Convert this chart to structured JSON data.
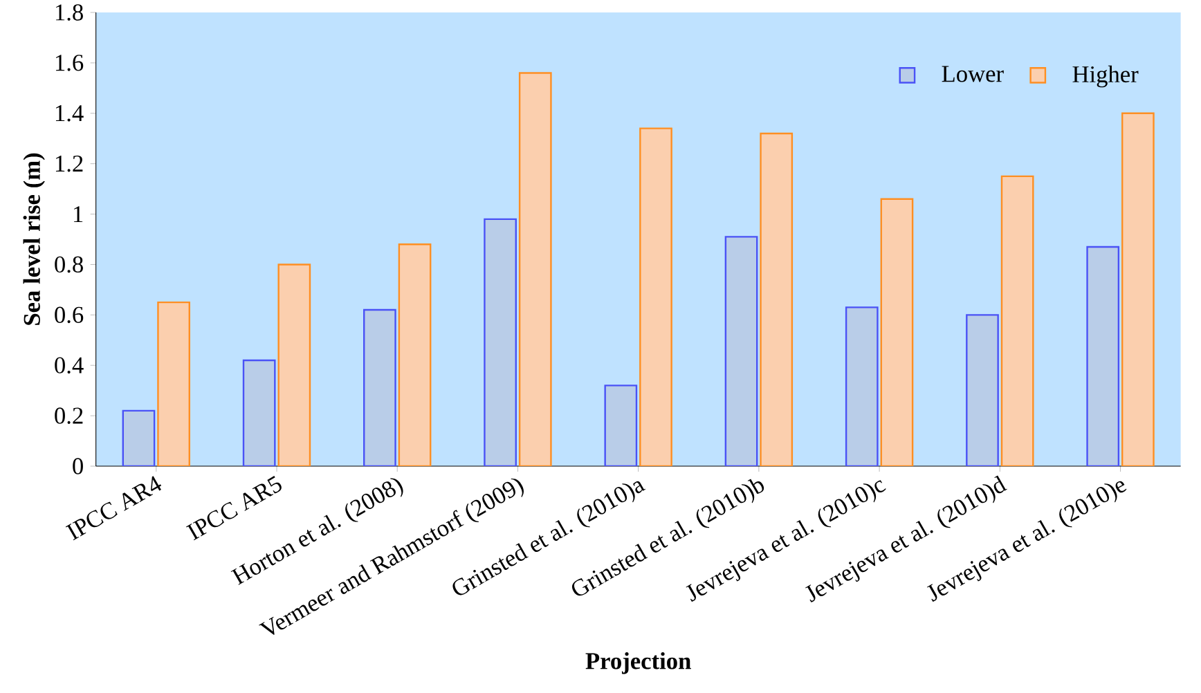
{
  "chart_data": {
    "type": "bar",
    "xlabel": "Projection",
    "ylabel": "Sea level rise (m)",
    "categories": [
      "IPCC AR4",
      "IPCC AR5",
      "Horton et al. (2008)",
      "Vermeer and Rahmstorf (2009)",
      "Grinsted et al. (2010)a",
      "Grinsted et al. (2010)b",
      "Jevrejeva et al. (2010)c",
      "Jevrejeva et al. (2010)d",
      "Jevrejeva et al. (2010)e"
    ],
    "series": [
      {
        "name": "Lower",
        "color": "#b9cde8",
        "values": [
          0.22,
          0.42,
          0.62,
          0.98,
          0.32,
          0.91,
          0.63,
          0.6,
          0.87
        ]
      },
      {
        "name": "Higher",
        "color": "#fbcfae",
        "values": [
          0.65,
          0.8,
          0.88,
          1.56,
          1.34,
          1.32,
          1.06,
          1.15,
          1.4
        ]
      }
    ],
    "ylim": [
      0,
      1.8
    ],
    "yticks": [
      0,
      0.2,
      0.4,
      0.6,
      0.8,
      1,
      1.2,
      1.4,
      1.6,
      1.8
    ],
    "grid": false,
    "legend": "top right"
  }
}
